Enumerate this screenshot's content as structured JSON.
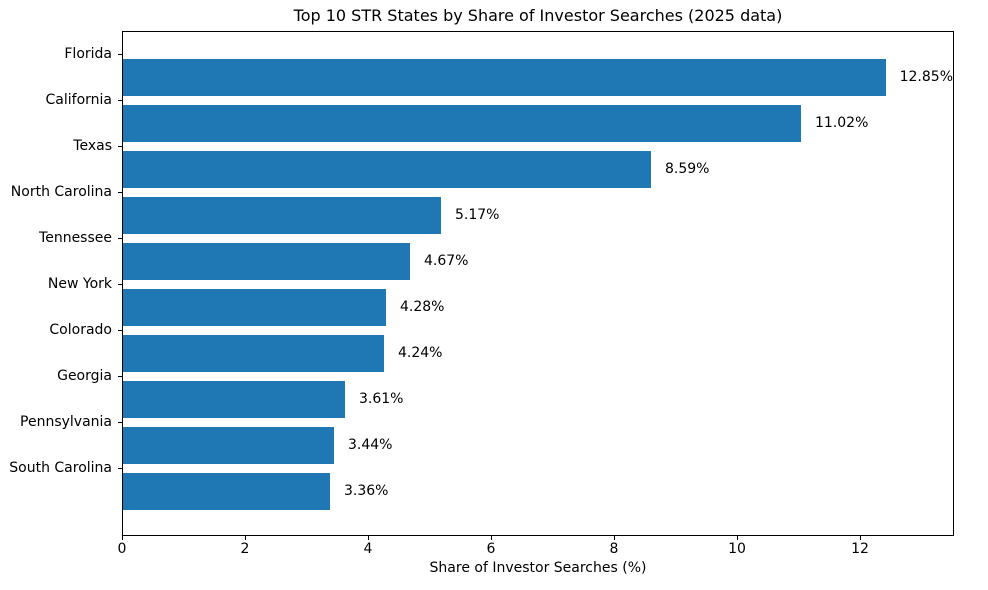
{
  "chart_data": {
    "type": "bar",
    "orientation": "horizontal",
    "title": "Top 10 STR States by Share of Investor Searches (2025 data)",
    "xlabel": "Share of Investor Searches (%)",
    "ylabel": "",
    "categories": [
      "Florida",
      "California",
      "Texas",
      "North Carolina",
      "Tennessee",
      "New York",
      "Colorado",
      "Georgia",
      "Pennsylvania",
      "South Carolina"
    ],
    "values": [
      12.85,
      11.02,
      8.59,
      5.17,
      4.67,
      4.28,
      4.24,
      3.61,
      3.44,
      3.36
    ],
    "value_labels": [
      "12.85%",
      "11.02%",
      "8.59%",
      "5.17%",
      "4.67%",
      "4.28%",
      "4.24%",
      "3.61%",
      "3.44%",
      "3.36%"
    ],
    "x_ticks": [
      0,
      2,
      4,
      6,
      8,
      10,
      12
    ],
    "xlim": [
      0,
      13.5
    ],
    "grid": false,
    "legend_position": "none",
    "bar_color": "#1f77b4",
    "text_color": "#000000",
    "background_color": "#ffffff"
  }
}
